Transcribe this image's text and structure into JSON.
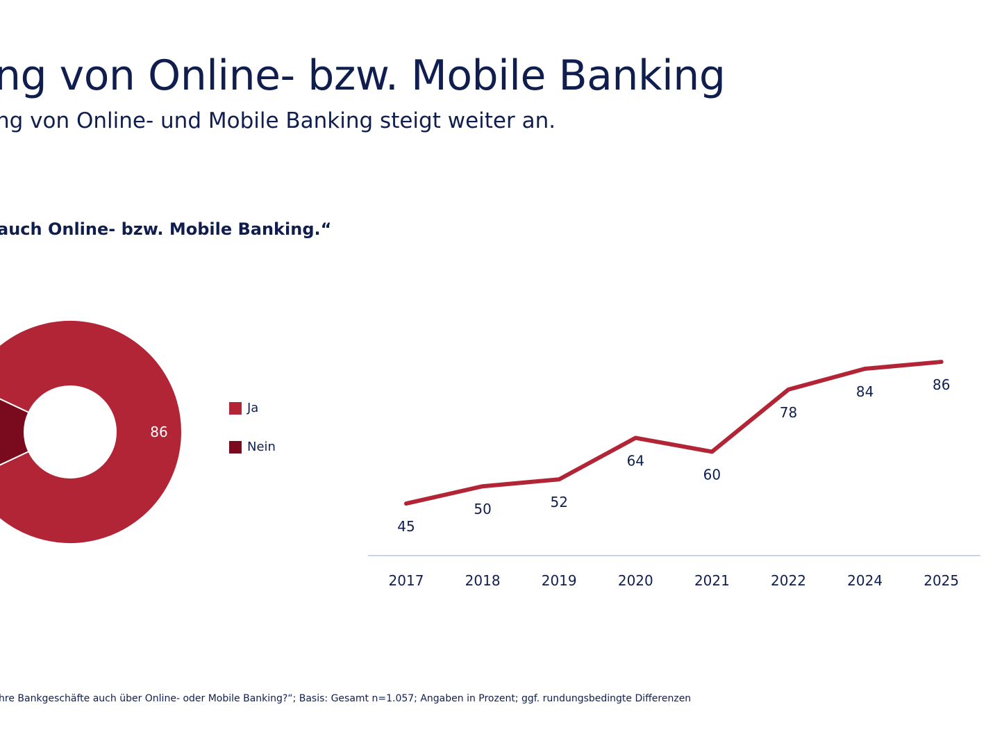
{
  "header": {
    "title": "ng von Online- bzw. Mobile Banking",
    "subtitle": "ng von Online- und Mobile Banking steigt weiter an.",
    "question": "auch Online- bzw. Mobile Banking.“"
  },
  "footnote": "hre Bankgeschäfte auch über Online- oder Mobile Banking?“; Basis: Gesamt n=1.057; Angaben in Prozent; ggf. rundungsbedingte Differenzen",
  "colors": {
    "ja": "#b22536",
    "nein": "#7a0a1e",
    "line": "#b22536",
    "axis": "#c9d3ea",
    "text": "#0f1e4f"
  },
  "chart_data": [
    {
      "type": "pie",
      "donut": true,
      "categories": [
        "Ja",
        "Nein"
      ],
      "values": [
        86,
        14
      ],
      "data_labels": [
        "86"
      ],
      "legend": {
        "placement": "right",
        "entries": [
          "Ja",
          "Nein"
        ]
      }
    },
    {
      "type": "line",
      "categories": [
        "2017",
        "2018",
        "2019",
        "2020",
        "2021",
        "2022",
        "2024",
        "2025"
      ],
      "values": [
        45,
        50,
        52,
        64,
        60,
        78,
        84,
        86
      ],
      "data_labels": [
        "45",
        "50",
        "52",
        "64",
        "60",
        "78",
        "84",
        "86"
      ],
      "grid": false
    }
  ]
}
